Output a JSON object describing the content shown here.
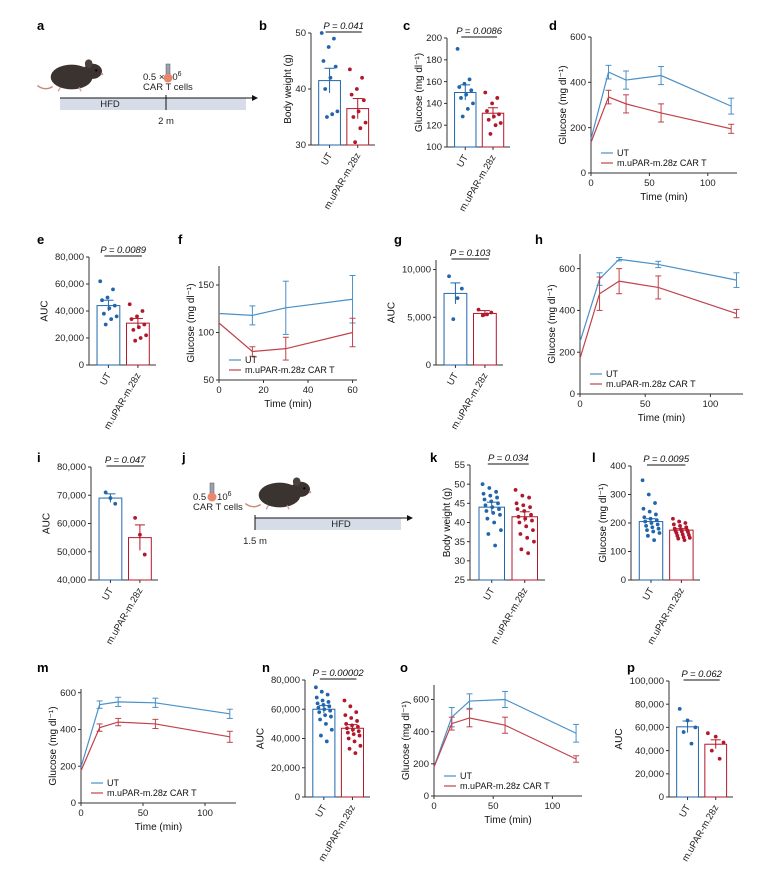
{
  "colors": {
    "ut": "#2166ac",
    "car": "#b2182b",
    "ut_line": "#4a90c8",
    "car_line": "#c0424b",
    "bar_fill": "#ffffff",
    "timeline": "#d6dde8"
  },
  "labels": {
    "ut": "UT",
    "car": "m.uPAR-m.28z",
    "car_legend": "m.uPAR-m.28z CAR T"
  },
  "schematics": {
    "a": {
      "panel_label": "a",
      "dose_line1": "0.5 × 10",
      "dose_exp": "6",
      "dose_line2": "CAR T cells",
      "diet": "HFD",
      "time": "2 m"
    },
    "j": {
      "panel_label": "j",
      "dose_line1": "0.5 × 10",
      "dose_exp": "6",
      "dose_line2": "CAR T cells",
      "diet": "HFD",
      "time": "1.5 m"
    }
  },
  "chart_data": [
    {
      "id": "b",
      "panel_label": "b",
      "type": "bar",
      "ylabel": "Body weight (g)",
      "ylim": [
        30,
        50
      ],
      "yticks": [
        "30",
        "40",
        "50"
      ],
      "categories": [
        "UT",
        "m.uPAR-m.28z"
      ],
      "means": [
        41.5,
        36.5
      ],
      "sem": [
        2.2,
        1.8
      ],
      "p_value": "P = 0.041",
      "points": [
        [
          50,
          49,
          47.5,
          45,
          44,
          42,
          40,
          36,
          35.5,
          35
        ],
        [
          43.5,
          42,
          40,
          39,
          38,
          36,
          35,
          34,
          33,
          30.5
        ]
      ]
    },
    {
      "id": "c",
      "panel_label": "c",
      "type": "bar",
      "ylabel": "Glucose (mg dl⁻¹)",
      "ylim": [
        100,
        200
      ],
      "yticks": [
        "100",
        "120",
        "140",
        "160",
        "180",
        "200"
      ],
      "categories": [
        "UT",
        "m.uPAR-m.28z"
      ],
      "means": [
        150,
        131
      ],
      "sem": [
        7,
        5
      ],
      "p_value": "P = 0.0086",
      "points": [
        [
          190,
          162,
          158,
          155,
          152,
          148,
          145,
          140,
          135,
          128
        ],
        [
          150,
          145,
          140,
          133,
          130,
          128,
          125,
          122,
          120,
          112
        ]
      ]
    },
    {
      "id": "d",
      "panel_label": "d",
      "type": "line",
      "xlabel": "Time (min)",
      "ylabel": "Glucose (mg dl⁻¹)",
      "xlim": [
        0,
        125
      ],
      "ylim": [
        0,
        600
      ],
      "xticks": [
        "0",
        "50",
        "100"
      ],
      "yticks": [
        "0",
        "200",
        "400",
        "600"
      ],
      "legend": "bottom-left",
      "x": [
        0,
        15,
        30,
        60,
        120
      ],
      "series": [
        {
          "name": "UT",
          "values": [
            150,
            445,
            410,
            430,
            295
          ],
          "err": [
            15,
            30,
            40,
            40,
            35
          ]
        },
        {
          "name": "m.uPAR-m.28z CAR T",
          "values": [
            135,
            335,
            305,
            265,
            195
          ],
          "err": [
            15,
            30,
            40,
            40,
            20
          ]
        }
      ]
    },
    {
      "id": "e",
      "panel_label": "e",
      "type": "bar",
      "ylabel": "AUC",
      "ylim": [
        0,
        80000
      ],
      "yticks": [
        "0",
        "20,000",
        "40,000",
        "60,000",
        "80,000"
      ],
      "categories": [
        "UT",
        "m.uPAR-m.28z"
      ],
      "means": [
        44000,
        31000
      ],
      "sem": [
        4000,
        3500
      ],
      "p_value": "P = 0.0089",
      "points": [
        [
          62000,
          56000,
          50000,
          48000,
          44000,
          42000,
          38000,
          36000,
          34000,
          30000
        ],
        [
          45000,
          40000,
          36000,
          34000,
          30000,
          28000,
          26000,
          22000,
          20000,
          18000
        ]
      ]
    },
    {
      "id": "f",
      "panel_label": "f",
      "type": "line",
      "xlabel": "Time (min)",
      "ylabel": "Glucose (mg dl⁻¹)",
      "xlim": [
        0,
        62
      ],
      "ylim": [
        50,
        170
      ],
      "xticks": [
        "0",
        "20",
        "40",
        "60"
      ],
      "yticks": [
        "50",
        "100",
        "150"
      ],
      "legend": "bottom-left",
      "x": [
        0,
        15,
        30,
        60
      ],
      "series": [
        {
          "name": "UT",
          "values": [
            120,
            118,
            126,
            135
          ],
          "err": [
            8,
            10,
            28,
            25
          ]
        },
        {
          "name": "m.uPAR-m.28z CAR T",
          "values": [
            110,
            80,
            83,
            100
          ],
          "err": [
            6,
            5,
            12,
            15
          ]
        }
      ]
    },
    {
      "id": "g",
      "panel_label": "g",
      "type": "bar",
      "ylabel": "AUC",
      "ylim": [
        0,
        11000
      ],
      "yticks": [
        "0",
        "5,000",
        "10,000"
      ],
      "categories": [
        "UT",
        "m.uPAR-m.28z"
      ],
      "means": [
        7500,
        5400
      ],
      "sem": [
        1100,
        300
      ],
      "p_value": "P = 0.103",
      "points": [
        [
          9300,
          8000,
          7000,
          4800
        ],
        [
          5800,
          5500,
          5300,
          5200
        ]
      ]
    },
    {
      "id": "h",
      "panel_label": "h",
      "type": "line",
      "xlabel": "Time (min)",
      "ylabel": "Glucose (mg dl⁻¹)",
      "xlim": [
        0,
        125
      ],
      "ylim": [
        0,
        670
      ],
      "xticks": [
        "0",
        "50",
        "100"
      ],
      "yticks": [
        "0",
        "200",
        "400",
        "600"
      ],
      "legend": "bottom-left",
      "x": [
        0,
        15,
        30,
        60,
        120
      ],
      "series": [
        {
          "name": "UT",
          "values": [
            250,
            550,
            645,
            620,
            545
          ],
          "err": [
            20,
            30,
            8,
            15,
            35
          ]
        },
        {
          "name": "m.uPAR-m.28z CAR T",
          "values": [
            170,
            480,
            540,
            510,
            385
          ],
          "err": [
            20,
            80,
            60,
            55,
            20
          ]
        }
      ]
    },
    {
      "id": "i",
      "panel_label": "i",
      "type": "bar",
      "ylabel": "AUC",
      "ylim": [
        40000,
        80000
      ],
      "yticks": [
        "40,000",
        "50,000",
        "60,000",
        "70,000",
        "80,000"
      ],
      "categories": [
        "UT",
        "m.uPAR-m.28z"
      ],
      "means": [
        69000,
        55000
      ],
      "sem": [
        1500,
        4500
      ],
      "p_value": "P = 0.047",
      "points": [
        [
          71000,
          69000,
          67000
        ],
        [
          62000,
          56000,
          49000
        ]
      ]
    },
    {
      "id": "k",
      "panel_label": "k",
      "type": "bar",
      "ylabel": "Body weight (g)",
      "ylim": [
        25,
        55
      ],
      "yticks": [
        "25",
        "30",
        "35",
        "40",
        "45",
        "50",
        "55"
      ],
      "categories": [
        "UT",
        "m.uPAR-m.28z"
      ],
      "means": [
        44,
        41.5
      ],
      "sem": [
        1.3,
        1.3
      ],
      "p_value": "P = 0.034",
      "points": [
        [
          50,
          49,
          48,
          47.5,
          47,
          46.5,
          46,
          45.5,
          45,
          44.5,
          44,
          43.5,
          43,
          42.5,
          42,
          41,
          40,
          38,
          37,
          34
        ],
        [
          48.5,
          47,
          46.5,
          45,
          44.5,
          44,
          43.5,
          43,
          42,
          41.5,
          41,
          40.5,
          40,
          39,
          38,
          37,
          36,
          35,
          33,
          32
        ]
      ]
    },
    {
      "id": "l",
      "panel_label": "l",
      "type": "bar",
      "ylabel": "Glucose (mg dl⁻¹)",
      "ylim": [
        0,
        400
      ],
      "yticks": [
        "0",
        "100",
        "200",
        "300",
        "400"
      ],
      "categories": [
        "UT",
        "m.uPAR-m.28z"
      ],
      "means": [
        205,
        175
      ],
      "sem": [
        10,
        5
      ],
      "p_value": "P = 0.0095",
      "points": [
        [
          350,
          300,
          270,
          250,
          240,
          230,
          220,
          215,
          210,
          205,
          200,
          195,
          190,
          185,
          180,
          175,
          170,
          165,
          155,
          140
        ],
        [
          215,
          205,
          200,
          195,
          190,
          185,
          180,
          178,
          175,
          172,
          170,
          168,
          165,
          160,
          158,
          155,
          150,
          148,
          145,
          140
        ]
      ]
    },
    {
      "id": "m",
      "panel_label": "m",
      "type": "line",
      "xlabel": "Time (min)",
      "ylabel": "Glucose (mg dl⁻¹)",
      "xlim": [
        0,
        125
      ],
      "ylim": [
        0,
        620
      ],
      "xticks": [
        "0",
        "50",
        "100"
      ],
      "yticks": [
        "0",
        "200",
        "400",
        "600"
      ],
      "legend": "bottom-left",
      "x": [
        0,
        15,
        30,
        60,
        120
      ],
      "series": [
        {
          "name": "UT",
          "values": [
            195,
            535,
            550,
            545,
            485
          ],
          "err": [
            15,
            20,
            25,
            25,
            25
          ]
        },
        {
          "name": "m.uPAR-m.28z CAR T",
          "values": [
            175,
            410,
            440,
            430,
            360
          ],
          "err": [
            15,
            20,
            20,
            25,
            30
          ]
        }
      ]
    },
    {
      "id": "n",
      "panel_label": "n",
      "type": "bar",
      "ylabel": "AUC",
      "ylim": [
        0,
        80000
      ],
      "yticks": [
        "0",
        "20,000",
        "40,000",
        "60,000",
        "80,000"
      ],
      "categories": [
        "UT",
        "m.uPAR-m.28z"
      ],
      "means": [
        60000,
        47000
      ],
      "sem": [
        2500,
        2500
      ],
      "p_value": "P = 0.00002",
      "points": [
        [
          75000,
          72000,
          70000,
          68000,
          66000,
          65000,
          64000,
          63000,
          62000,
          61000,
          60000,
          59000,
          58000,
          56000,
          55000,
          53000,
          50000,
          46000,
          42000,
          38000
        ],
        [
          66000,
          62000,
          58000,
          56000,
          54000,
          52000,
          50000,
          49000,
          48000,
          47000,
          46000,
          45000,
          44000,
          43000,
          42000,
          40000,
          38000,
          35000,
          33000,
          30000
        ]
      ]
    },
    {
      "id": "o",
      "panel_label": "o",
      "type": "line",
      "xlabel": "Time (min)",
      "ylabel": "Glucose (mg dl⁻¹)",
      "xlim": [
        0,
        125
      ],
      "ylim": [
        0,
        690
      ],
      "xticks": [
        "0",
        "50",
        "100"
      ],
      "yticks": [
        "0",
        "200",
        "400",
        "600"
      ],
      "legend": "bottom-left",
      "x": [
        0,
        15,
        30,
        60,
        120
      ],
      "series": [
        {
          "name": "UT",
          "values": [
            180,
            490,
            590,
            600,
            390
          ],
          "err": [
            15,
            60,
            45,
            50,
            55
          ]
        },
        {
          "name": "m.uPAR-m.28z CAR T",
          "values": [
            180,
            450,
            485,
            440,
            230
          ],
          "err": [
            15,
            40,
            55,
            50,
            20
          ]
        }
      ]
    },
    {
      "id": "p",
      "panel_label": "p",
      "type": "bar",
      "ylabel": "AUC",
      "ylim": [
        0,
        100000
      ],
      "yticks": [
        "0",
        "20,000",
        "40,000",
        "60,000",
        "80,000",
        "100,000"
      ],
      "categories": [
        "UT",
        "m.uPAR-m.28z"
      ],
      "means": [
        60500,
        45500
      ],
      "sem": [
        5000,
        3800
      ],
      "p_value": "P = 0.062",
      "points": [
        [
          76000,
          66000,
          60000,
          56000,
          46000
        ],
        [
          55000,
          52000,
          47000,
          40000,
          33000
        ]
      ]
    }
  ]
}
